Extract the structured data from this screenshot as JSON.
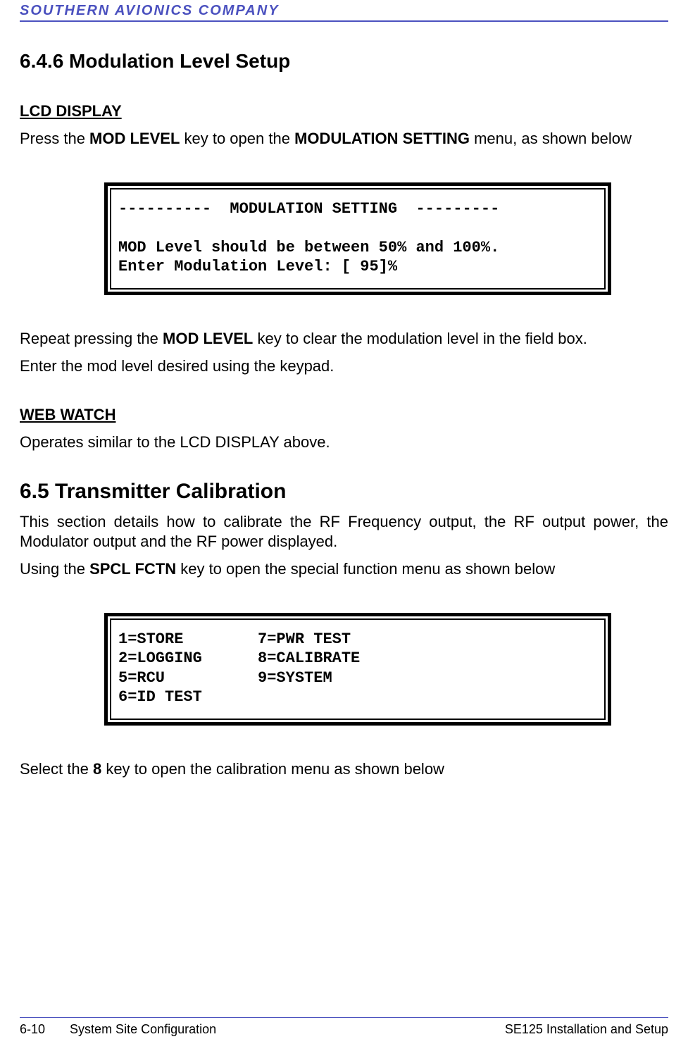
{
  "header": {
    "company": "SOUTHERN AVIONICS COMPANY"
  },
  "section646": {
    "title": "6.4.6  Modulation Level Setup",
    "lcd_heading": "LCD DISPLAY",
    "intro_pre": "Press the ",
    "intro_key": "MOD LEVEL",
    "intro_mid": " key to open the ",
    "intro_menu": "MODULATION SETTING",
    "intro_post": " menu, as shown below",
    "lcd_lines": "----------  MODULATION SETTING  ---------\n\nMOD Level should be between 50% and 100%.\nEnter Modulation Level: [ 95]%",
    "repeat_pre": "Repeat pressing the ",
    "repeat_key": "MOD LEVEL",
    "repeat_post": " key to clear the modulation level in the field box.",
    "enter_line": "Enter the mod level desired using the keypad.",
    "webwatch_heading": "WEB WATCH",
    "webwatch_text": "Operates similar to the LCD DISPLAY above."
  },
  "section65": {
    "title": "6.5  Transmitter Calibration",
    "para1": "This section details how to calibrate the RF Frequency output, the RF output power, the Modulator output and the RF power displayed.",
    "using_pre": "Using the ",
    "using_key": "SPCL FCTN",
    "using_post": " key to open the special function menu as shown below",
    "menu_lines": "1=STORE        7=PWR TEST\n2=LOGGING      8=CALIBRATE\n5=RCU          9=SYSTEM\n6=ID TEST",
    "select_pre": "Select the ",
    "select_key": "8",
    "select_post": " key to open the calibration menu as shown below"
  },
  "footer": {
    "left_page": "6-10",
    "left_title": "System Site Configuration",
    "right": "SE125 Installation and Setup"
  }
}
